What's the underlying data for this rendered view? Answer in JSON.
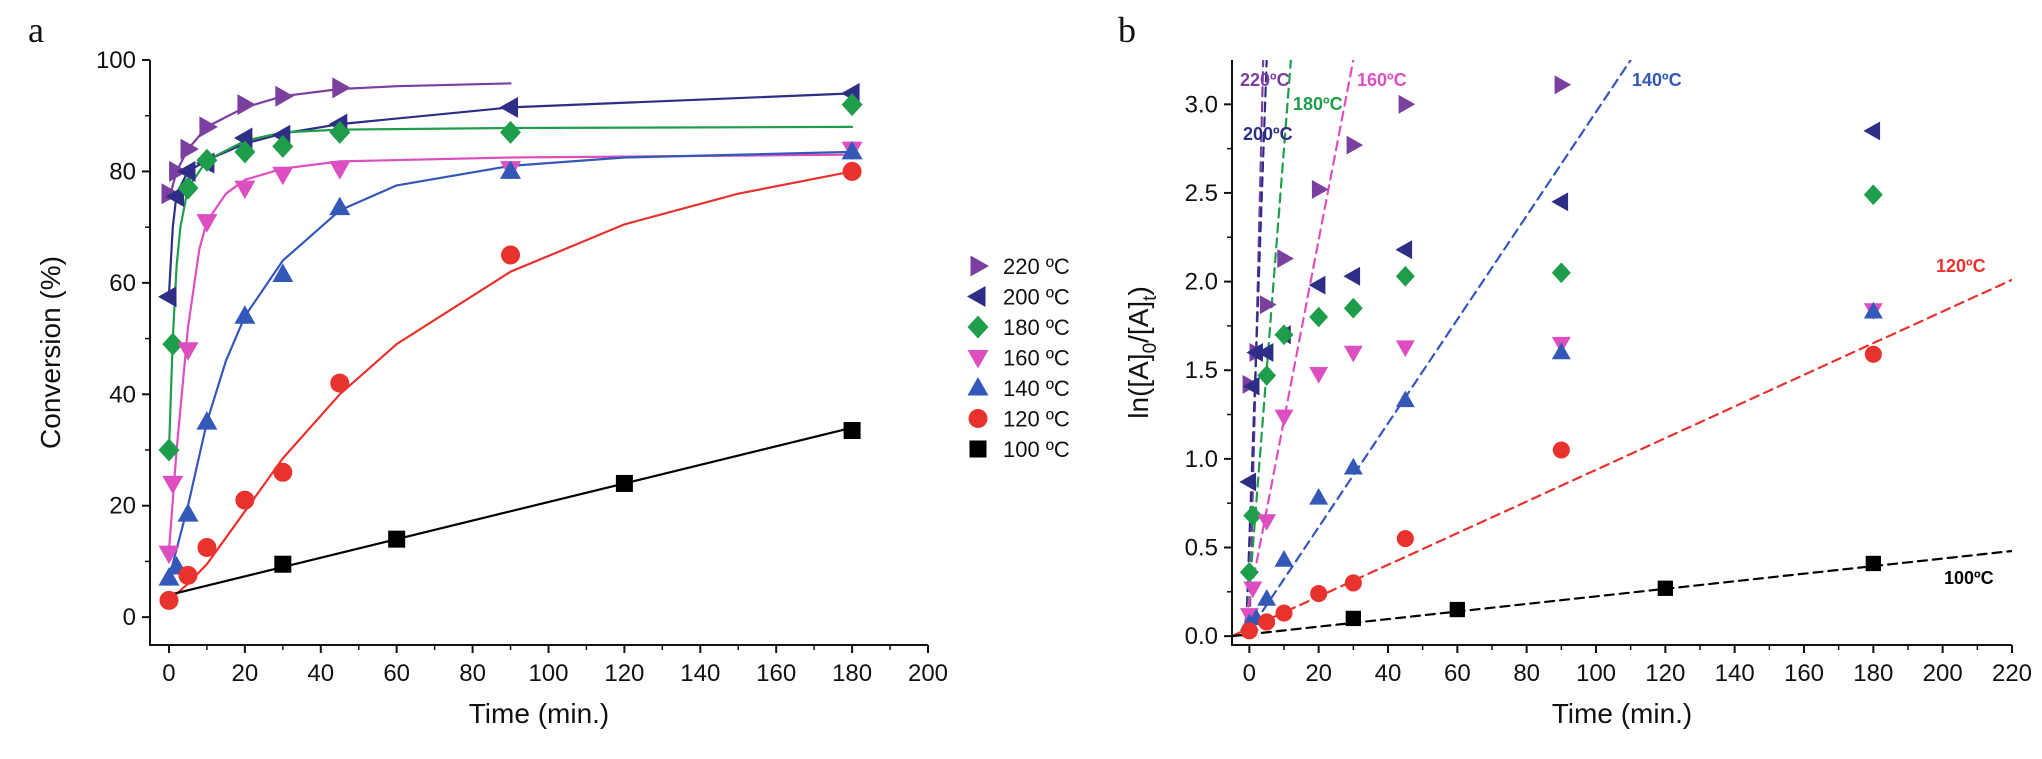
{
  "panels": [
    {
      "label": "a"
    },
    {
      "label": "b"
    }
  ],
  "chart_data": [
    {
      "type": "scatter",
      "panel": "a",
      "title": "",
      "xlabel": "Time (min.)",
      "ylabel": "Conversion (%)",
      "xlim": [
        -5,
        200
      ],
      "ylim": [
        -5,
        100
      ],
      "xticks": [
        0,
        20,
        40,
        60,
        80,
        100,
        120,
        140,
        160,
        180,
        200
      ],
      "yticks": [
        0,
        20,
        40,
        60,
        80,
        100
      ],
      "grid": false,
      "legend_position": "right",
      "fit_lines": "solid",
      "series": [
        {
          "name": "220 ºC",
          "marker": "triangle-right",
          "color": "#7b3fa0",
          "x": [
            0,
            2,
            5,
            10,
            20,
            30,
            45
          ],
          "y": [
            76,
            80,
            84,
            88,
            92,
            93.5,
            95
          ],
          "fit": [
            [
              0,
              75
            ],
            [
              2,
              80
            ],
            [
              5,
              84
            ],
            [
              10,
              88
            ],
            [
              20,
              91.5
            ],
            [
              30,
              93.5
            ],
            [
              45,
              94.8
            ],
            [
              60,
              95.3
            ],
            [
              90,
              95.8
            ]
          ]
        },
        {
          "name": "200 ºC",
          "marker": "triangle-left",
          "color": "#2e2e86",
          "x": [
            0,
            2,
            5,
            10,
            20,
            30,
            45,
            90,
            180
          ],
          "y": [
            57.5,
            75.5,
            80,
            81.5,
            86,
            86.5,
            88.5,
            91.5,
            94
          ],
          "fit": [
            [
              0,
              58
            ],
            [
              1,
              70
            ],
            [
              2,
              76
            ],
            [
              5,
              80
            ],
            [
              10,
              82
            ],
            [
              20,
              85
            ],
            [
              30,
              86.8
            ],
            [
              45,
              88.5
            ],
            [
              90,
              91.5
            ],
            [
              180,
              94
            ]
          ]
        },
        {
          "name": "180 ºC",
          "marker": "diamond",
          "color": "#1e9e4a",
          "x": [
            0,
            1,
            5,
            10,
            20,
            30,
            45,
            90,
            180
          ],
          "y": [
            30,
            49,
            77,
            82,
            83.5,
            84.5,
            87,
            87,
            92
          ],
          "fit": [
            [
              0,
              30
            ],
            [
              1,
              50
            ],
            [
              2,
              63
            ],
            [
              3,
              70
            ],
            [
              5,
              77
            ],
            [
              10,
              82
            ],
            [
              20,
              85.5
            ],
            [
              30,
              87
            ],
            [
              45,
              87.5
            ],
            [
              90,
              87.8
            ],
            [
              180,
              88
            ]
          ]
        },
        {
          "name": "160 ºC",
          "marker": "triangle-down",
          "color": "#dd4fc0",
          "x": [
            0,
            1,
            5,
            10,
            20,
            30,
            45,
            90,
            180
          ],
          "y": [
            11.5,
            24,
            48,
            71,
            77,
            79.5,
            80.5,
            80.5,
            84
          ],
          "fit": [
            [
              0,
              12
            ],
            [
              2,
              30
            ],
            [
              5,
              52
            ],
            [
              8,
              66
            ],
            [
              10,
              71
            ],
            [
              15,
              76
            ],
            [
              20,
              78.5
            ],
            [
              30,
              80.5
            ],
            [
              45,
              81.8
            ],
            [
              90,
              82.5
            ],
            [
              180,
              83
            ]
          ]
        },
        {
          "name": "140 ºC",
          "marker": "triangle-up",
          "color": "#3358b8",
          "x": [
            0,
            2,
            5,
            10,
            20,
            30,
            45,
            90,
            180
          ],
          "y": [
            7,
            9,
            18.5,
            35,
            54,
            61.5,
            73.5,
            80,
            83.5
          ],
          "fit": [
            [
              0,
              7
            ],
            [
              5,
              20
            ],
            [
              10,
              35
            ],
            [
              15,
              46
            ],
            [
              20,
              54
            ],
            [
              30,
              64
            ],
            [
              45,
              73
            ],
            [
              60,
              77.5
            ],
            [
              90,
              81
            ],
            [
              120,
              82.5
            ],
            [
              180,
              83.5
            ]
          ]
        },
        {
          "name": "120 ºC",
          "marker": "circle",
          "color": "#e8322e",
          "x": [
            0,
            5,
            10,
            20,
            30,
            45,
            90,
            180
          ],
          "y": [
            3,
            7.5,
            12.5,
            21,
            26,
            42,
            65,
            80
          ],
          "fit": [
            [
              0,
              3
            ],
            [
              5,
              6
            ],
            [
              10,
              9.5
            ],
            [
              20,
              19
            ],
            [
              30,
              28.5
            ],
            [
              45,
              40
            ],
            [
              60,
              49
            ],
            [
              90,
              62
            ],
            [
              120,
              70.5
            ],
            [
              150,
              76
            ],
            [
              180,
              80
            ]
          ]
        },
        {
          "name": "100 ºC",
          "marker": "square",
          "color": "#000000",
          "x": [
            30,
            60,
            120,
            180
          ],
          "y": [
            9.5,
            14,
            24,
            33.5
          ],
          "fit": [
            [
              0,
              4
            ],
            [
              180,
              34
            ]
          ]
        }
      ]
    },
    {
      "type": "scatter",
      "panel": "b",
      "title": "",
      "xlabel": "Time (min.)",
      "ylabel": "ln([A]0/[A]t)",
      "ylabel_parts": {
        "main": "ln([A]",
        "sub1": "0",
        "mid": "/[A]",
        "sub2": "t",
        "end": ")"
      },
      "xlim": [
        -5,
        220
      ],
      "ylim": [
        -0.05,
        3.25
      ],
      "xticks": [
        0,
        20,
        40,
        60,
        80,
        100,
        120,
        140,
        160,
        180,
        200,
        220
      ],
      "yticks": [
        0.0,
        0.5,
        1.0,
        1.5,
        2.0,
        2.5,
        3.0
      ],
      "ytick_labels": [
        "0.0",
        "0.5",
        "1.0",
        "1.5",
        "2.0",
        "2.5",
        "3.0"
      ],
      "grid": false,
      "fit_lines": "dashed",
      "series": [
        {
          "name": "220ºC",
          "marker": "triangle-right",
          "color": "#7b3fa0",
          "x": [
            0,
            2,
            5,
            10,
            20,
            30,
            45,
            90
          ],
          "y": [
            1.42,
            1.6,
            1.87,
            2.13,
            2.52,
            2.77,
            3.0,
            3.11
          ],
          "fit": [
            [
              0,
              0
            ],
            [
              4,
              3.25
            ]
          ]
        },
        {
          "name": "200ºC",
          "marker": "triangle-left",
          "color": "#2e2e86",
          "x": [
            0,
            1,
            2,
            5,
            10,
            20,
            30,
            45,
            90,
            180
          ],
          "y": [
            0.87,
            1.41,
            1.6,
            1.6,
            1.7,
            1.98,
            2.03,
            2.18,
            2.45,
            2.85
          ],
          "fit": [
            [
              -1,
              0
            ],
            [
              5,
              3.25
            ]
          ]
        },
        {
          "name": "180ºC",
          "marker": "diamond",
          "color": "#1e9e4a",
          "x": [
            0,
            1,
            5,
            10,
            20,
            30,
            45,
            90,
            180
          ],
          "y": [
            0.36,
            0.68,
            1.47,
            1.7,
            1.8,
            1.85,
            2.03,
            2.05,
            2.49
          ],
          "fit": [
            [
              -1,
              0
            ],
            [
              12,
              3.25
            ]
          ]
        },
        {
          "name": "160ºC",
          "marker": "triangle-down",
          "color": "#dd4fc0",
          "x": [
            0,
            1,
            5,
            10,
            20,
            30,
            45,
            90,
            180
          ],
          "y": [
            0.12,
            0.27,
            0.65,
            1.24,
            1.48,
            1.6,
            1.63,
            1.65,
            1.84
          ],
          "fit": [
            [
              -2,
              0
            ],
            [
              30,
              3.25
            ]
          ]
        },
        {
          "name": "140ºC",
          "marker": "triangle-up",
          "color": "#3358b8",
          "x": [
            0,
            2,
            5,
            10,
            20,
            30,
            45,
            90,
            180
          ],
          "y": [
            0.07,
            0.1,
            0.21,
            0.43,
            0.78,
            0.95,
            1.33,
            1.6,
            1.83
          ],
          "fit": [
            [
              -1,
              0
            ],
            [
              110,
              3.25
            ]
          ]
        },
        {
          "name": "120ºC",
          "marker": "circle",
          "color": "#e8322e",
          "x": [
            0,
            5,
            10,
            20,
            30,
            45,
            90,
            180
          ],
          "y": [
            0.03,
            0.08,
            0.13,
            0.24,
            0.3,
            0.55,
            1.05,
            1.59
          ],
          "fit": [
            [
              -5,
              0
            ],
            [
              220,
              2.01
            ]
          ]
        },
        {
          "name": "100ºC",
          "marker": "square",
          "color": "#000000",
          "x": [
            30,
            60,
            120,
            180
          ],
          "y": [
            0.1,
            0.15,
            0.27,
            0.41
          ],
          "fit": [
            [
              -5,
              0.0
            ],
            [
              220,
              0.48
            ]
          ]
        }
      ]
    }
  ]
}
